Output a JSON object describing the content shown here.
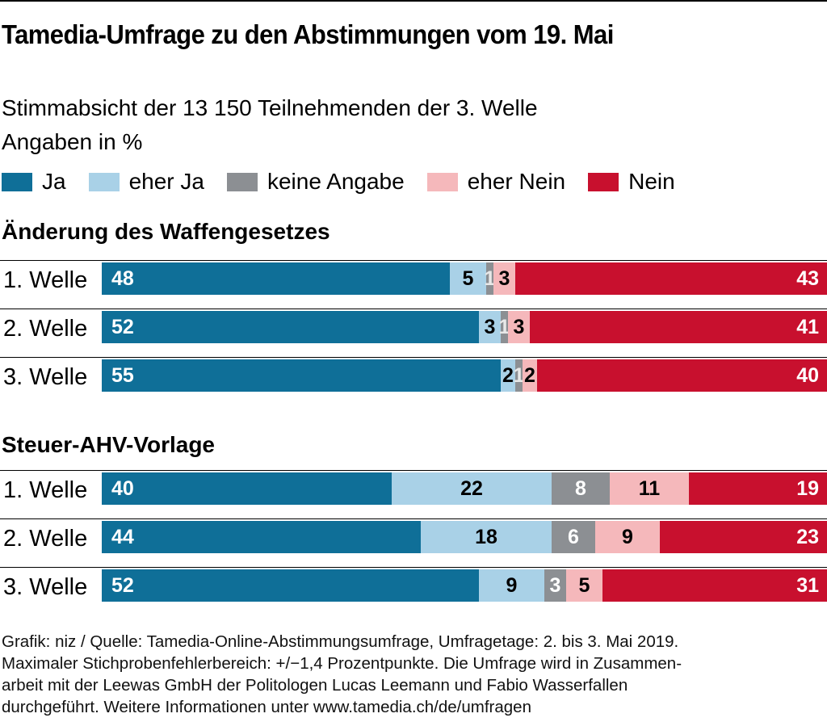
{
  "title": "Tamedia-Umfrage zu den Abstimmungen vom 19. Mai",
  "subtitle_line1": "Stimmabsicht der 13 150 Teilnehmenden der 3. Welle",
  "subtitle_line2": "Angaben in %",
  "colors": {
    "ja": "#0f6f98",
    "eher_ja": "#a9d1e7",
    "keine_angabe": "#8c8f93",
    "eher_nein": "#f5b8bb",
    "nein": "#c8102e"
  },
  "legend": [
    {
      "key": "ja",
      "label": "Ja"
    },
    {
      "key": "eher_ja",
      "label": "eher Ja"
    },
    {
      "key": "keine_angabe",
      "label": "keine Angabe"
    },
    {
      "key": "eher_nein",
      "label": "eher Nein"
    },
    {
      "key": "nein",
      "label": "Nein"
    }
  ],
  "chart_data": [
    {
      "type": "bar",
      "stacked": true,
      "orientation": "horizontal",
      "title": "Änderung des Waffengesetzes",
      "categories": [
        "1. Welle",
        "2. Welle",
        "3. Welle"
      ],
      "series": [
        {
          "name": "Ja",
          "key": "ja",
          "values": [
            48,
            52,
            55
          ]
        },
        {
          "name": "eher Ja",
          "key": "eher_ja",
          "values": [
            5,
            3,
            2
          ]
        },
        {
          "name": "keine Angabe",
          "key": "keine_angabe",
          "values": [
            1,
            1,
            1
          ]
        },
        {
          "name": "eher Nein",
          "key": "eher_nein",
          "values": [
            3,
            3,
            2
          ]
        },
        {
          "name": "Nein",
          "key": "nein",
          "values": [
            43,
            41,
            40
          ]
        }
      ],
      "xlim": [
        0,
        100
      ]
    },
    {
      "type": "bar",
      "stacked": true,
      "orientation": "horizontal",
      "title": "Steuer-AHV-Vorlage",
      "categories": [
        "1. Welle",
        "2. Welle",
        "3. Welle"
      ],
      "series": [
        {
          "name": "Ja",
          "key": "ja",
          "values": [
            40,
            44,
            52
          ]
        },
        {
          "name": "eher Ja",
          "key": "eher_ja",
          "values": [
            22,
            18,
            9
          ]
        },
        {
          "name": "keine Angabe",
          "key": "keine_angabe",
          "values": [
            8,
            6,
            3
          ]
        },
        {
          "name": "eher Nein",
          "key": "eher_nein",
          "values": [
            11,
            9,
            5
          ]
        },
        {
          "name": "Nein",
          "key": "nein",
          "values": [
            19,
            23,
            31
          ]
        }
      ],
      "xlim": [
        0,
        100
      ]
    }
  ],
  "footer": {
    "line1": "Grafik: niz / Quelle: Tamedia-Online-Abstimmungsumfrage, Umfragetage: 2. bis 3. Mai 2019.",
    "line2": "Maximaler Stichprobenfehlerbereich: +/−1,4 Prozentpunkte. Die Umfrage wird in Zusammen-",
    "line3": "arbeit mit der Leewas GmbH der Politologen Lucas Leemann und Fabio Wasserfallen",
    "line4": "durchgeführt. Weitere Informationen unter www.tamedia.ch/de/umfragen"
  }
}
